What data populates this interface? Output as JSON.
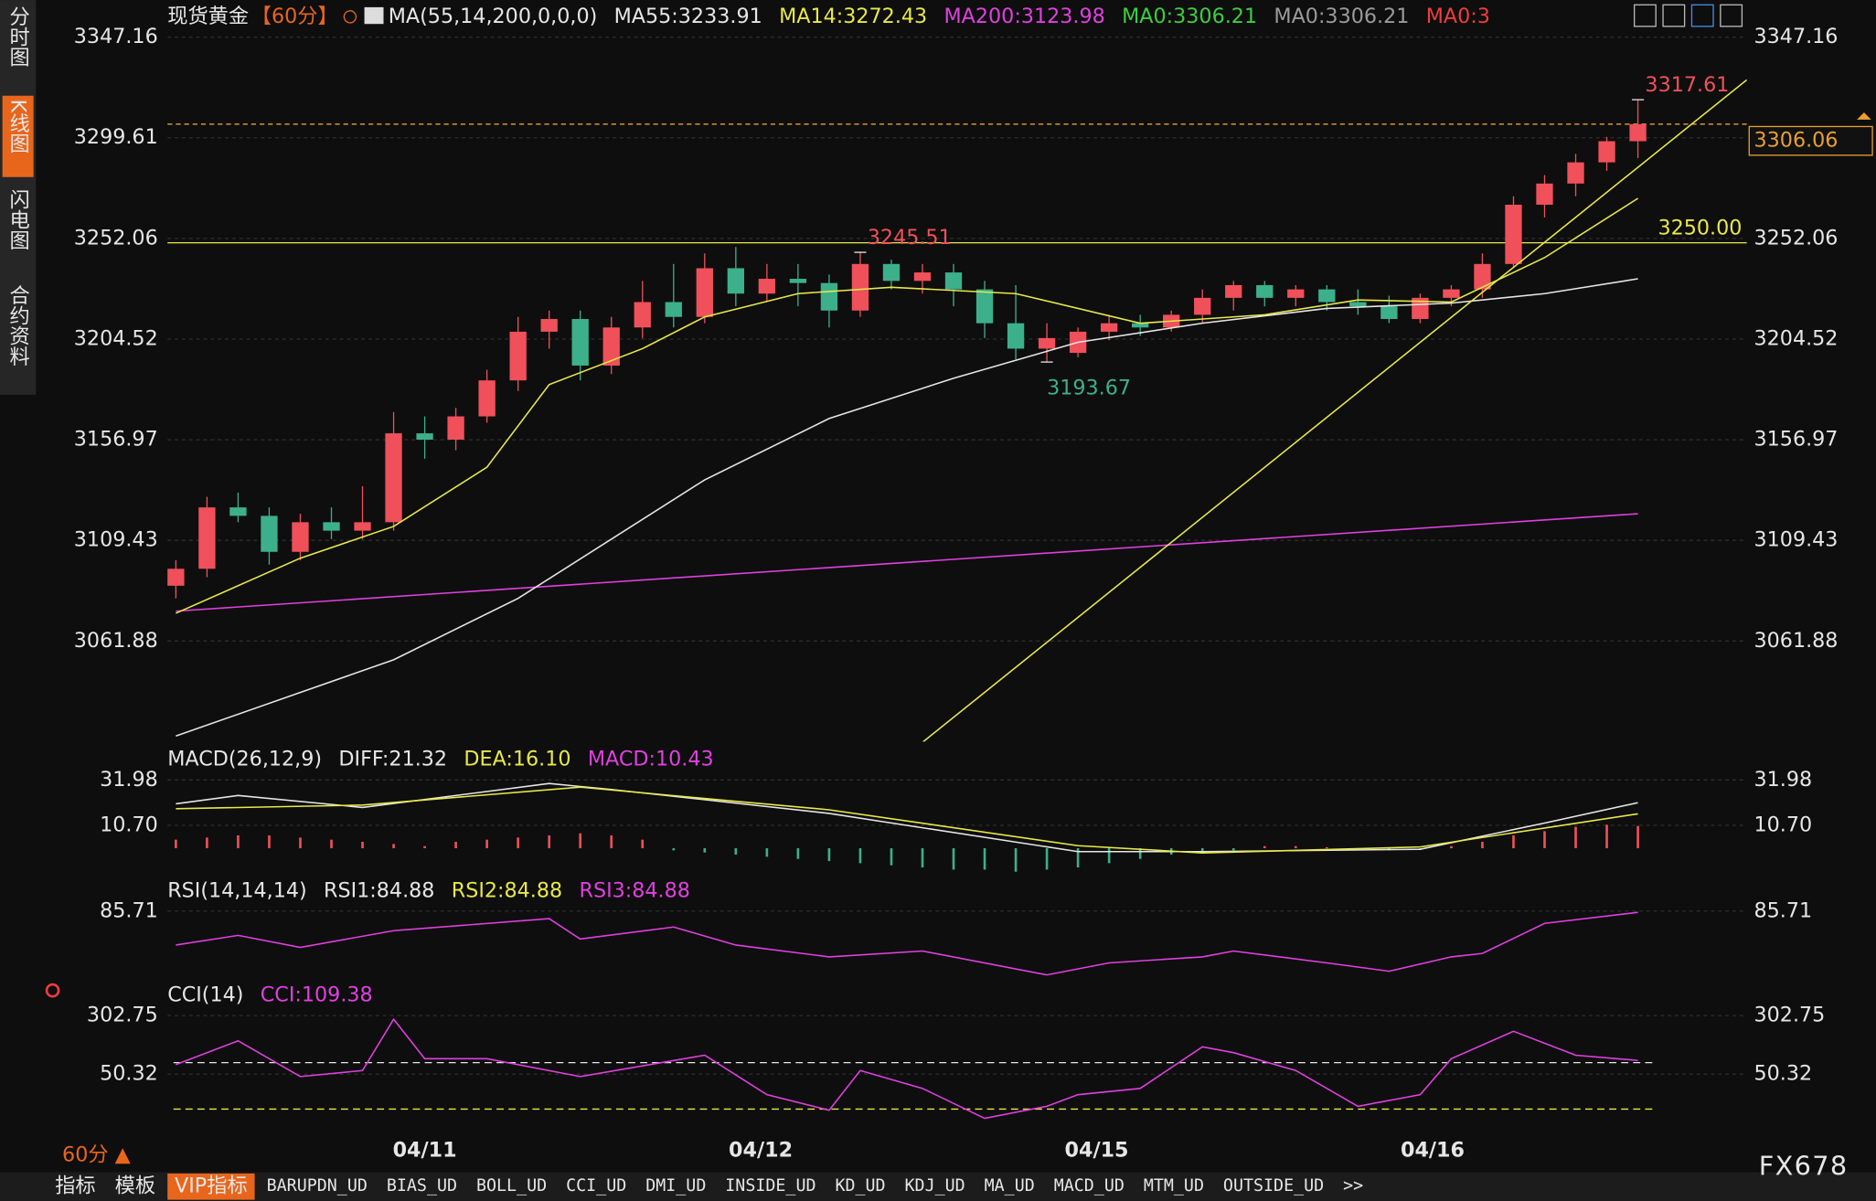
{
  "chart_data": [
    {
      "type": "candlestick",
      "title": "现货黄金",
      "period": "【60分】",
      "legend": [
        {
          "text": "MA(55,14,200,0,0,0)",
          "color": "#e6e6e6"
        },
        {
          "text": "MA55:3233.91",
          "color": "#e6e6e6"
        },
        {
          "text": "MA14:3272.43",
          "color": "#e8e84a"
        },
        {
          "text": "MA200:3123.98",
          "color": "#e040e0"
        },
        {
          "text": "MA0:3306.21",
          "color": "#3ccf3c"
        },
        {
          "text": "MA0:3306.21",
          "color": "#9a9a9a"
        },
        {
          "text": "MA0:3",
          "color": "#f03c3c"
        }
      ],
      "candles": {
        "open": [
          3088,
          3096,
          3125,
          3121,
          3104,
          3118,
          3114,
          3118,
          3160,
          3157,
          3168,
          3185,
          3208,
          3214,
          3192,
          3210,
          3222,
          3215,
          3238,
          3226,
          3233,
          3231,
          3218,
          3240,
          3232,
          3236,
          3228,
          3212,
          3200,
          3198,
          3208,
          3212,
          3210,
          3216,
          3224,
          3230,
          3224,
          3228,
          3222,
          3220,
          3214,
          3224,
          3228,
          3240,
          3268,
          3278,
          3288,
          3298
        ],
        "high": [
          3100,
          3130,
          3132,
          3125,
          3122,
          3125,
          3135,
          3170,
          3168,
          3172,
          3190,
          3215,
          3218,
          3218,
          3215,
          3232,
          3240,
          3245,
          3248,
          3240,
          3240,
          3235,
          3245.51,
          3242,
          3240,
          3240,
          3232,
          3230,
          3212,
          3210,
          3216,
          3216,
          3218,
          3228,
          3232,
          3232,
          3230,
          3230,
          3228,
          3225,
          3226,
          3230,
          3245,
          3272,
          3282,
          3292,
          3300,
          3317.61
        ],
        "low": [
          3082,
          3092,
          3118,
          3098,
          3100,
          3110,
          3110,
          3114,
          3148,
          3152,
          3165,
          3180,
          3200,
          3185,
          3188,
          3205,
          3210,
          3212,
          3220,
          3222,
          3220,
          3210,
          3215,
          3228,
          3226,
          3220,
          3205,
          3195,
          3193.67,
          3196,
          3204,
          3206,
          3208,
          3212,
          3218,
          3220,
          3220,
          3218,
          3216,
          3212,
          3212,
          3220,
          3224,
          3238,
          3262,
          3272,
          3284,
          3290
        ],
        "close": [
          3096,
          3125,
          3121,
          3104,
          3118,
          3114,
          3118,
          3160,
          3157,
          3168,
          3185,
          3208,
          3214,
          3192,
          3210,
          3222,
          3215,
          3238,
          3226,
          3233,
          3231,
          3218,
          3240,
          3232,
          3236,
          3228,
          3212,
          3200,
          3205,
          3208,
          3212,
          3210,
          3216,
          3224,
          3230,
          3224,
          3228,
          3222,
          3220,
          3214,
          3224,
          3228,
          3240,
          3268,
          3278,
          3288,
          3298,
          3306.06
        ],
        "up_color": "#f0505a",
        "down_color": "#3cb08a"
      },
      "series": [
        {
          "color": "#e040e0",
          "x": [
            0,
            47
          ],
          "values": [
            3076,
            3122
          ]
        },
        {
          "color": "#e6e6e6",
          "x": [
            0,
            7,
            11,
            17,
            21,
            25,
            29,
            33,
            37,
            41,
            44,
            47
          ],
          "values": [
            3017,
            3053,
            3082,
            3138,
            3167,
            3186,
            3203,
            3212,
            3219,
            3221.5,
            3226,
            3233
          ]
        },
        {
          "color": "#e8e84a",
          "x": [
            0,
            4,
            7,
            10,
            12,
            15,
            17,
            20,
            23,
            27,
            31,
            35,
            38,
            41,
            44,
            47
          ],
          "values": [
            3075,
            3101,
            3116,
            3144,
            3183,
            3200,
            3215,
            3226,
            3229,
            3226,
            3212,
            3216,
            3223,
            3222,
            3243,
            3271
          ]
        }
      ],
      "trendline": {
        "color": "#e8e84a",
        "x": [
          24,
          50.5
        ],
        "values": [
          3014,
          3327
        ]
      },
      "hline": {
        "value": 3250,
        "label": "3250.00",
        "color": "#e8e84a"
      },
      "last_price": 3306.06,
      "annotations": [
        {
          "x": 47,
          "value": 3317.61,
          "color": "#f0505a"
        },
        {
          "x": 22,
          "value": 3245.51,
          "color": "#f0505a"
        },
        {
          "x": 28,
          "value": 3193.67,
          "color": "#3cb08a"
        }
      ],
      "ylim": [
        3014.33,
        3353.39
      ],
      "yticks": [
        3347.16,
        3299.61,
        3252.06,
        3204.52,
        3156.97,
        3109.43,
        3061.88
      ],
      "grid": true
    },
    {
      "type": "macd",
      "legend": [
        {
          "text": "MACD(26,12,9)",
          "color": "#e6e6e6"
        },
        {
          "text": "DIFF:21.32",
          "color": "#e6e6e6"
        },
        {
          "text": "DEA:16.10",
          "color": "#e8e84a"
        },
        {
          "text": "MACD:10.43",
          "color": "#e040e0"
        }
      ],
      "series": [
        {
          "color": "#e6e6e6",
          "x": [
            0,
            2,
            6,
            12,
            14,
            21,
            29,
            33,
            40,
            44,
            47
          ],
          "values": [
            20.8,
            24.7,
            19.1,
            30.3,
            27.5,
            16.3,
            -1.6,
            -1.6,
            -0.5,
            11.8,
            21.32
          ]
        },
        {
          "color": "#e8e84a",
          "x": [
            0,
            6,
            13,
            21,
            29,
            33,
            40,
            47
          ],
          "values": [
            18.5,
            20.2,
            28.6,
            18,
            1.2,
            -2.2,
            0.6,
            16.1
          ]
        }
      ],
      "histogram": [
        4,
        5,
        6,
        6,
        5,
        4,
        3,
        2,
        1,
        3,
        4,
        5,
        6,
        7,
        6,
        4,
        -1,
        -2,
        -3,
        -4,
        -5,
        -6,
        -7,
        -8,
        -9,
        -10,
        -10,
        -11,
        -10,
        -9,
        -7,
        -5,
        -3,
        -2,
        -1,
        1,
        1,
        0.5,
        -1,
        -1,
        -0.5,
        1,
        3,
        6,
        8,
        10,
        11,
        10.43
      ],
      "up_color": "#f0505a",
      "down_color": "#3cb08a",
      "ylim": [
        -12.82,
        45.42
      ],
      "yticks": [
        31.98,
        {
          "value": 10.7,
          "label": "10.70"
        }
      ],
      "grid": true
    },
    {
      "type": "line",
      "legend": [
        {
          "text": "RSI(14,14,14)",
          "color": "#e6e6e6"
        },
        {
          "text": "RSI1:84.88",
          "color": "#e6e6e6"
        },
        {
          "text": "RSI2:84.88",
          "color": "#e8e84a"
        },
        {
          "text": "RSI3:84.88",
          "color": "#e040e0"
        }
      ],
      "series": [
        {
          "color": "#e040e0",
          "x": [
            0,
            2,
            4,
            7,
            12,
            13,
            16,
            18,
            21,
            24,
            28,
            30,
            33,
            34,
            37,
            39,
            41,
            42,
            44,
            47
          ],
          "values": [
            64.2,
            70.3,
            62.7,
            73.3,
            80.9,
            68,
            75.6,
            64.2,
            56.7,
            60.4,
            45.3,
            52.9,
            56.7,
            60.4,
            52.9,
            47.6,
            56.7,
            58.9,
            77.9,
            84.88
          ]
        }
      ],
      "ylim": [
        40,
        93
      ],
      "yticks": [
        85.71
      ],
      "grid": true
    },
    {
      "type": "line",
      "legend": [
        {
          "text": "CCI(14)",
          "color": "#e6e6e6"
        },
        {
          "text": "CCI:109.38",
          "color": "#e040e0"
        }
      ],
      "series": [
        {
          "color": "#e040e0",
          "x": [
            0,
            2,
            4,
            6,
            7,
            8,
            10,
            13,
            17,
            19,
            21,
            22,
            24,
            26,
            28,
            29,
            31,
            33,
            34,
            36,
            38,
            40,
            41,
            43,
            45,
            47
          ],
          "values": [
            91.5,
            194,
            40,
            66,
            287,
            117,
            117,
            40,
            132,
            -38,
            -105,
            66,
            -11,
            -140,
            -88,
            -38,
            -11,
            168,
            143,
            66,
            -88,
            -38,
            117,
            235,
            132,
            109.38
          ]
        }
      ],
      "levels": [
        {
          "value": 100,
          "color": "#e6e6e6"
        },
        {
          "value": -100,
          "color": "#e8e84a"
        }
      ],
      "ylim": [
        -191.8,
        349.1
      ],
      "yticks": [
        302.75,
        50.32
      ],
      "grid": true,
      "xticks": [
        {
          "value": 8,
          "label": "04/11"
        },
        {
          "value": 18.8,
          "label": "04/12"
        },
        {
          "value": 29.6,
          "label": "04/15"
        },
        {
          "value": 40.4,
          "label": "04/16"
        }
      ]
    }
  ],
  "ui": {
    "sidebar": [
      "分时图",
      "K线图",
      "闪电图",
      "合约资料"
    ],
    "tabs": [
      "指标",
      "模板",
      "VIP指标",
      "BARUPDN_UD",
      "BIAS_UD",
      "BOLL_UD",
      "CCI_UD",
      "DMI_UD",
      "INSIDE_UD",
      "KD_UD",
      "KDJ_UD",
      "MA_UD",
      "MACD_UD",
      "MTM_UD",
      "OUTSIDE_UD",
      ">>"
    ],
    "period_button": "60分 ▲",
    "brand": "FX678"
  }
}
